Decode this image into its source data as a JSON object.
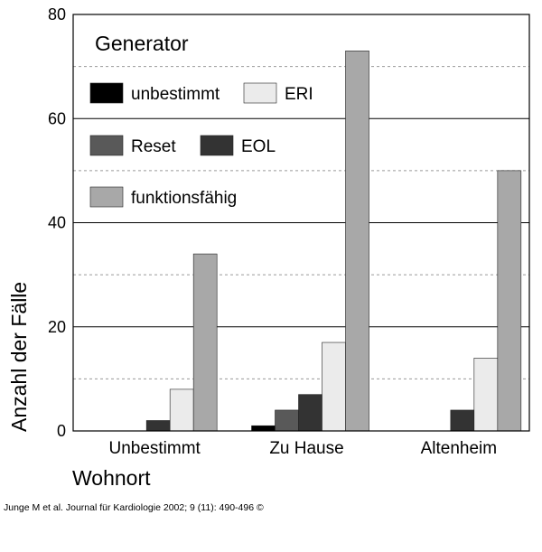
{
  "chart_data": {
    "type": "bar",
    "title": "Generator",
    "xlabel": "Wohnort",
    "ylabel": "Anzahl der Fälle",
    "ylim": [
      0,
      80
    ],
    "yticks": [
      0,
      20,
      40,
      60,
      80
    ],
    "grid": true,
    "legend_position": "top-left",
    "categories": [
      "Unbestimmt",
      "Zu Hause",
      "Altenheim"
    ],
    "series": [
      {
        "name": "unbestimmt",
        "color": "#000000",
        "values": [
          0,
          1,
          0
        ]
      },
      {
        "name": "Reset",
        "color": "#595959",
        "values": [
          0,
          4,
          0
        ]
      },
      {
        "name": "EOL",
        "color": "#333333",
        "values": [
          2,
          7,
          4
        ]
      },
      {
        "name": "ERI",
        "color": "#ebebeb",
        "values": [
          8,
          17,
          14
        ]
      },
      {
        "name": "funktionsfähig",
        "color": "#a8a8a8",
        "values": [
          34,
          73,
          50
        ]
      }
    ]
  },
  "citation": "Junge M et al. Journal für Kardiologie 2002; 9 (11): 490-496 ©"
}
